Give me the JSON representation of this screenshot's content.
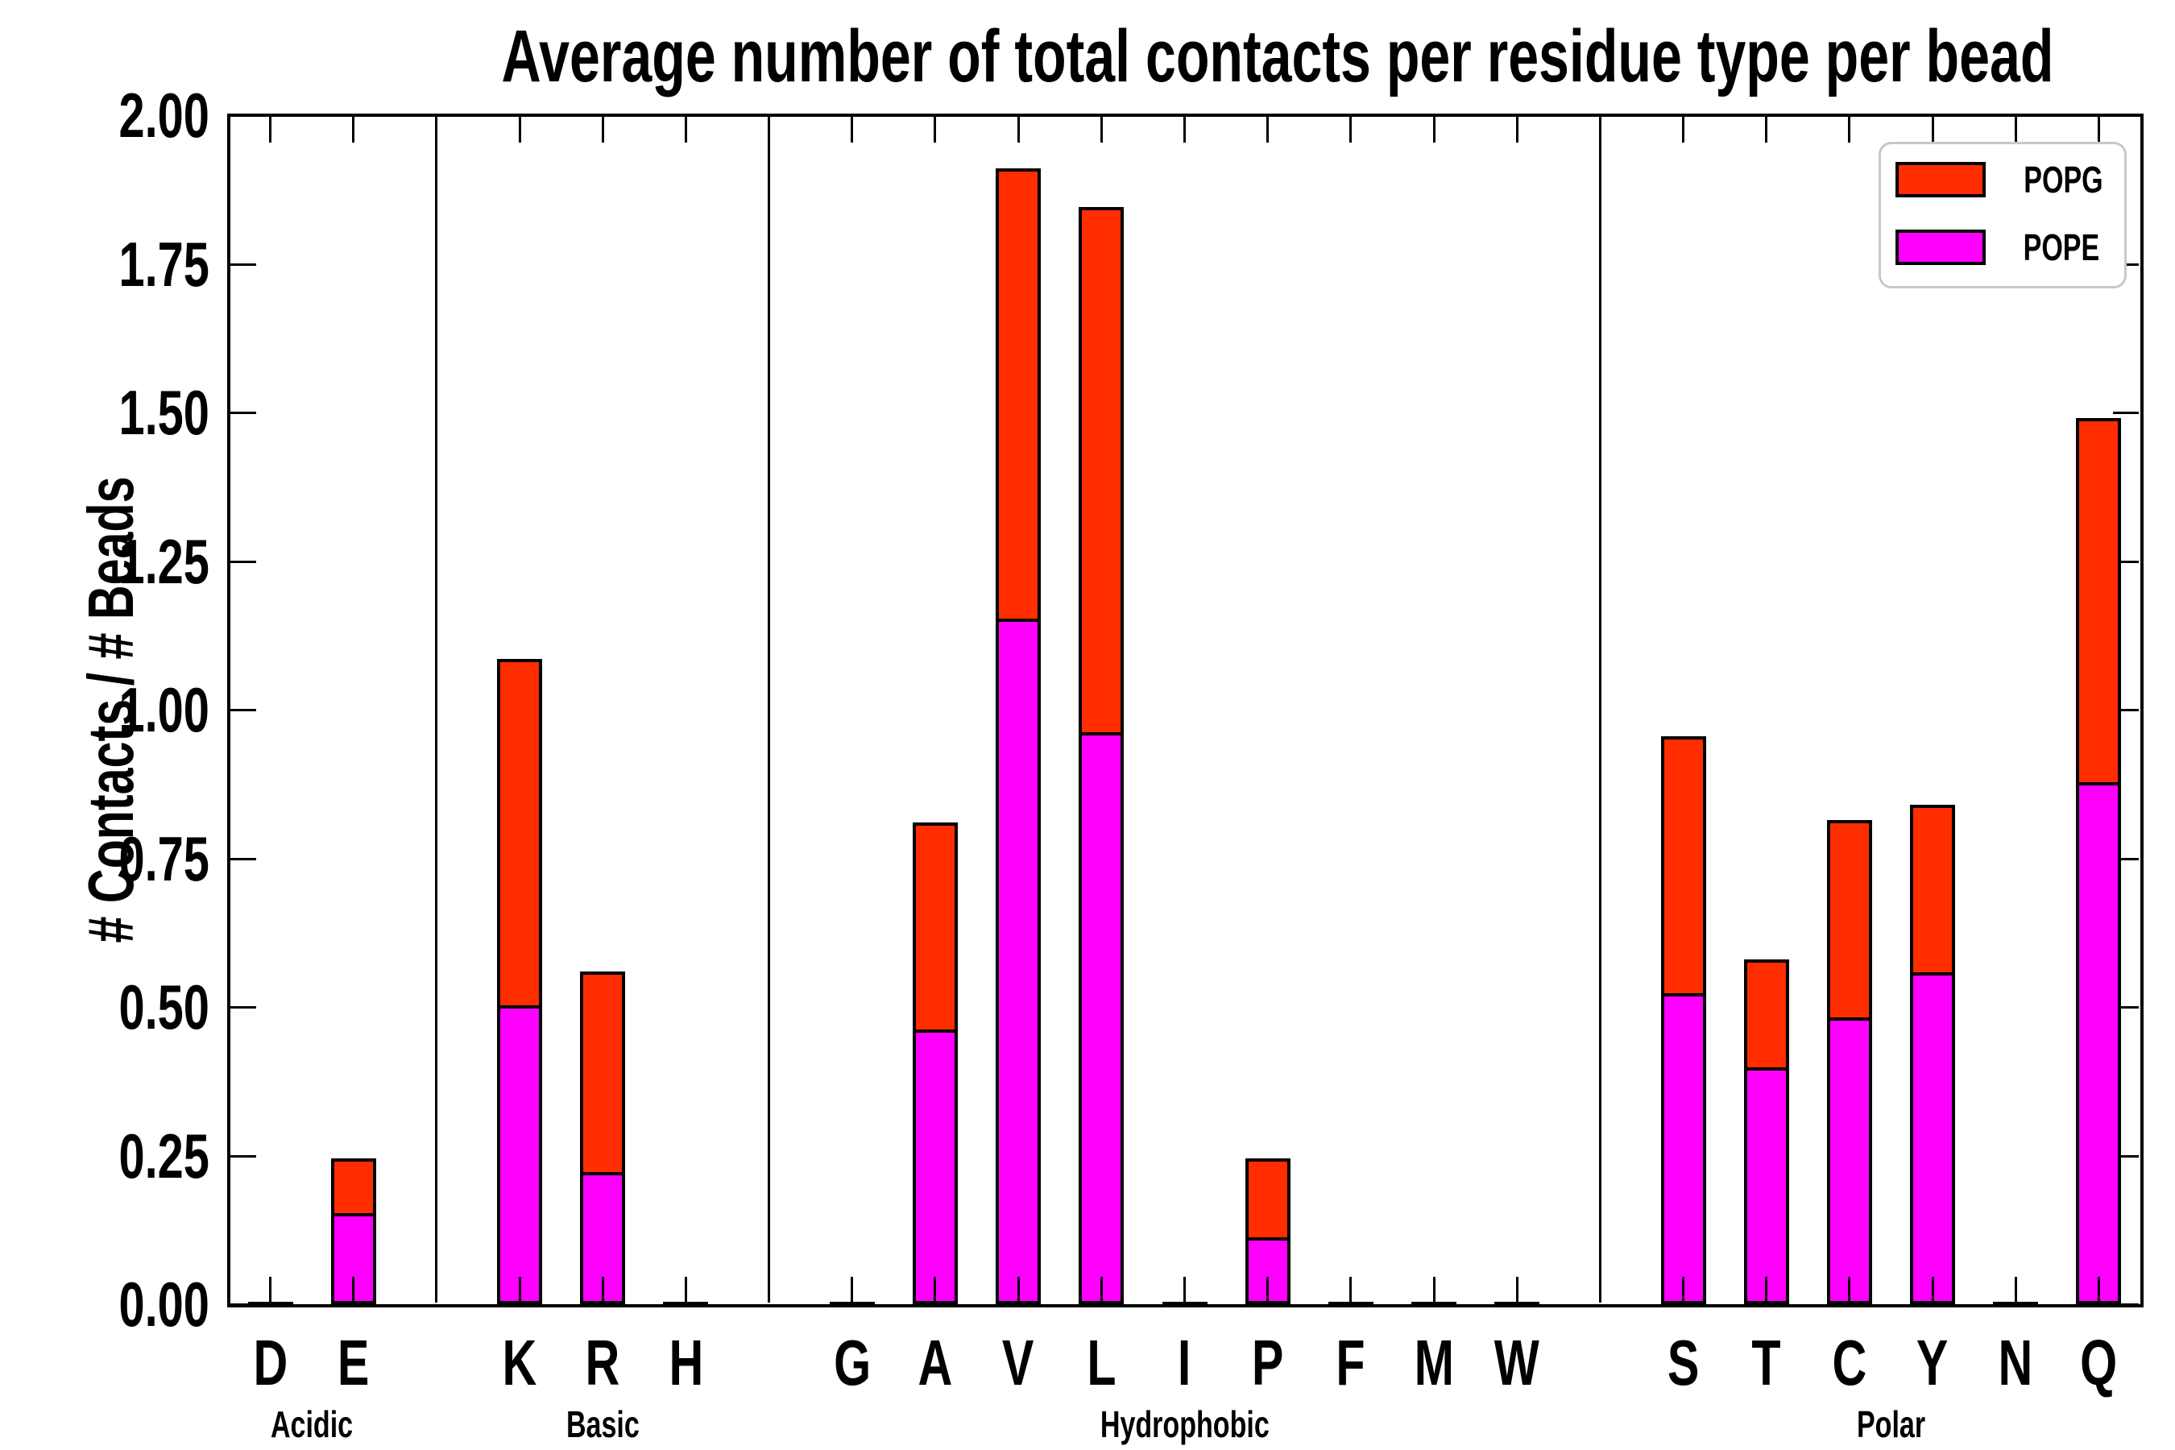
{
  "title": "Average number of total contacts per residue type per bead",
  "ylabel": "# Contacts / # Beads",
  "legend": {
    "items": [
      {
        "label": "POPG",
        "color": "#ff2d00"
      },
      {
        "label": "POPE",
        "color": "#ff00ff"
      }
    ]
  },
  "chart_data": {
    "type": "bar",
    "stacked": true,
    "title": "Average number of total contacts per residue type per bead",
    "xlabel": "",
    "ylabel": "# Contacts / # Beads",
    "ylim": [
      0,
      2
    ],
    "ytick_step": 0.25,
    "ytick_labels": [
      "0.00",
      "0.25",
      "0.50",
      "0.75",
      "1.00",
      "1.25",
      "1.50",
      "1.75",
      "2.00"
    ],
    "grid": false,
    "legend_position": "upper right",
    "categories": [
      "D",
      "E",
      "K",
      "R",
      "H",
      "G",
      "A",
      "V",
      "L",
      "I",
      "P",
      "F",
      "M",
      "W",
      "S",
      "T",
      "C",
      "Y",
      "N",
      "Q"
    ],
    "groups": [
      {
        "label": "Acidic",
        "categories": [
          "D",
          "E"
        ]
      },
      {
        "label": "Basic",
        "categories": [
          "K",
          "R",
          "H"
        ]
      },
      {
        "label": "Hydrophobic",
        "categories": [
          "G",
          "A",
          "V",
          "L",
          "I",
          "P",
          "F",
          "M",
          "W"
        ]
      },
      {
        "label": "Polar",
        "categories": [
          "S",
          "T",
          "C",
          "Y",
          "N",
          "Q"
        ]
      }
    ],
    "series": [
      {
        "name": "POPE",
        "color": "#ff00ff",
        "stack_position": "bottom",
        "values": [
          0,
          0.15,
          0.5,
          0.22,
          0,
          0,
          0.46,
          1.15,
          0.96,
          0,
          0.11,
          0,
          0,
          0,
          0.52,
          0.395,
          0.48,
          0.555,
          0,
          0.875
        ]
      },
      {
        "name": "POPG",
        "color": "#ff2d00",
        "stack_position": "top",
        "values": [
          0,
          0.095,
          0.585,
          0.34,
          0,
          0,
          0.35,
          0.76,
          0.885,
          0,
          0.135,
          0,
          0,
          0,
          0.435,
          0.185,
          0.335,
          0.285,
          0,
          0.615
        ]
      }
    ],
    "totals": [
      0,
      0.245,
      1.085,
      0.56,
      0,
      0,
      0.81,
      1.91,
      1.845,
      0,
      0.245,
      0,
      0,
      0,
      0.955,
      0.58,
      0.815,
      0.84,
      0,
      1.49
    ]
  }
}
